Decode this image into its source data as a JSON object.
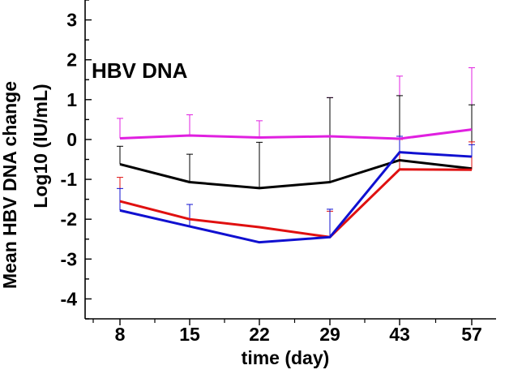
{
  "chart_data": {
    "type": "line",
    "annotation": "HBV DNA",
    "xlabel": "time (day)",
    "ylabel_line1": "Mean HBV DNA change",
    "ylabel_line2": "Log10 (IU/mL)",
    "categories": [
      "8",
      "15",
      "22",
      "29",
      "43",
      "57"
    ],
    "ylim": [
      -4.5,
      3.5
    ],
    "yticks": [
      3,
      2,
      1,
      0,
      -1,
      -2,
      -3,
      -4
    ],
    "grid": false,
    "legend": "none",
    "series": [
      {
        "color": "#e020e0",
        "values": [
          0.03,
          0.1,
          0.05,
          0.08,
          0.02,
          0.25
        ],
        "err_upper": [
          0.5,
          0.52,
          0.42,
          0.97,
          1.57,
          1.55
        ],
        "err_lower": [
          0,
          0,
          0,
          0,
          0,
          0
        ]
      },
      {
        "color": "#000000",
        "values": [
          -0.62,
          -1.07,
          -1.22,
          -1.07,
          -0.52,
          -0.73
        ],
        "err_upper": [
          0.45,
          0.7,
          1.15,
          2.12,
          1.62,
          1.6
        ],
        "err_lower": [
          0,
          0,
          0,
          0,
          0,
          0
        ]
      },
      {
        "color": "#e01010",
        "values": [
          -1.55,
          -2.0,
          -2.2,
          -2.45,
          -0.75,
          -0.76
        ],
        "err_upper": [
          0.6,
          0,
          0,
          0.65,
          0.75,
          0.7
        ],
        "err_lower": [
          0,
          0,
          0,
          0,
          0,
          0
        ]
      },
      {
        "color": "#1010d0",
        "values": [
          -1.78,
          -2.18,
          -2.58,
          -2.45,
          -0.32,
          -0.43
        ],
        "err_upper": [
          0.55,
          0.55,
          0,
          0.7,
          0.4,
          0.3
        ],
        "err_lower": [
          0,
          0,
          0,
          0,
          0,
          0
        ]
      }
    ]
  }
}
